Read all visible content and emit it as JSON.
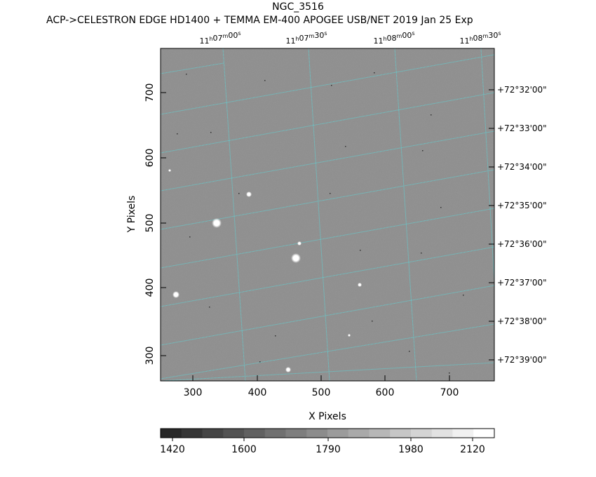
{
  "header": {
    "title": "NGC_3516",
    "subtitle": "ACP->CELESTRON EDGE HD1400 + TEMMA EM-400 APOGEE USB/NET   2019 Jan 25    Exp"
  },
  "axes": {
    "xlabel": "X Pixels",
    "ylabel": "Y Pixels",
    "x_ticks": [
      "300",
      "400",
      "500",
      "600",
      "700"
    ],
    "y_ticks": [
      "300",
      "400",
      "500",
      "600",
      "700"
    ],
    "ra_ticks": [
      {
        "h": "11",
        "m": "07",
        "s": "00"
      },
      {
        "h": "11",
        "m": "07",
        "s": "30"
      },
      {
        "h": "11",
        "m": "08",
        "s": "00"
      },
      {
        "h": "11",
        "m": "08",
        "s": "30"
      }
    ],
    "dec_ticks": [
      "+72°32'00\"",
      "+72°33'00\"",
      "+72°34'00\"",
      "+72°35'00\"",
      "+72°36'00\"",
      "+72°37'00\"",
      "+72°38'00\"",
      "+72°39'00\""
    ]
  },
  "colorbar": {
    "labels": [
      "1420",
      "1600",
      "1790",
      "1980",
      "2120"
    ]
  },
  "colors": {
    "sky": "#8c8c8c",
    "grid": "#5fd3d6"
  }
}
